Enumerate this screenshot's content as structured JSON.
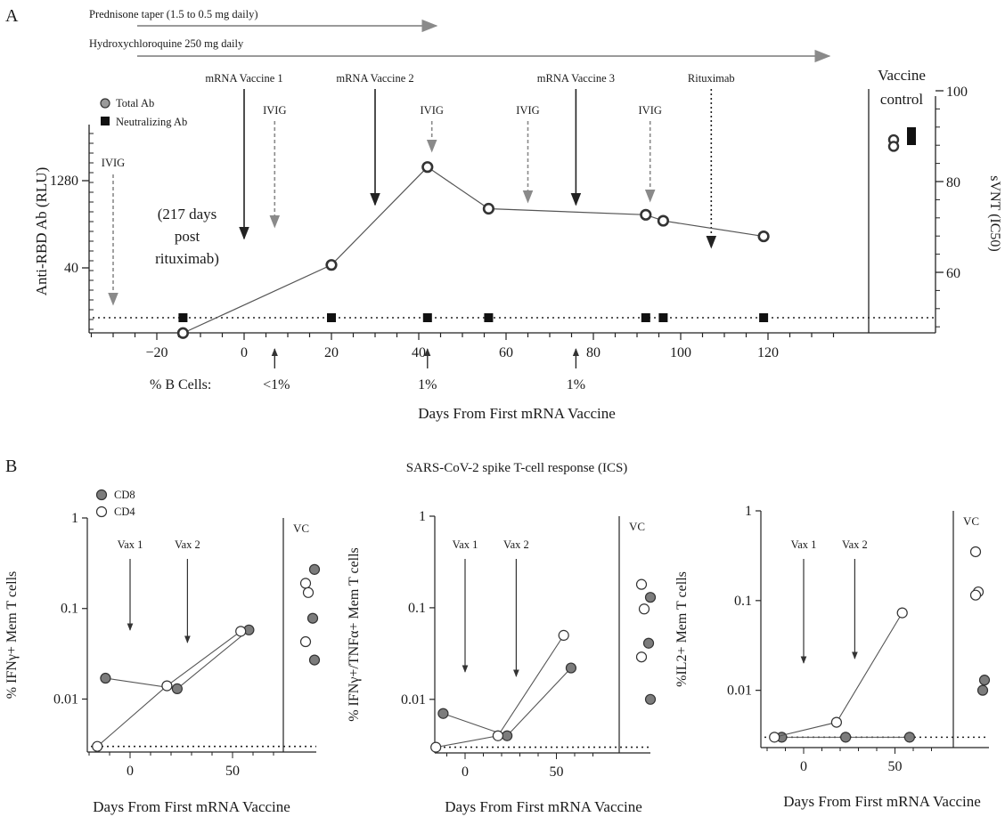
{
  "panel_a": {
    "letter": "A",
    "treatments": [
      {
        "label": "Prednisone taper (1.5 to 0.5 mg daily)",
        "from_day": -30,
        "to_day": 44
      },
      {
        "label": "Hydroxychloroquine 250 mg daily",
        "from_day": -30,
        "to_day": 134
      }
    ],
    "events": [
      {
        "label": "IVIG",
        "day": -30,
        "style": "dashed"
      },
      {
        "label": "mRNA Vaccine 1",
        "day": 0,
        "style": "solid"
      },
      {
        "label": "IVIG",
        "day": 7,
        "style": "dashed"
      },
      {
        "label": "mRNA Vaccine 2",
        "day": 30,
        "style": "solid"
      },
      {
        "label": "IVIG",
        "day": 43,
        "style": "dashed"
      },
      {
        "label": "IVIG",
        "day": 65,
        "style": "dashed"
      },
      {
        "label": "mRNA Vaccine 3",
        "day": 76,
        "style": "solid"
      },
      {
        "label": "IVIG",
        "day": 93,
        "style": "dashed"
      },
      {
        "label": "Rituximab",
        "day": 107,
        "style": "dotted"
      }
    ],
    "note": [
      "(217 days",
      "post",
      "rituximab)"
    ],
    "legend": [
      {
        "label": "Total Ab",
        "marker": "circle-gray"
      },
      {
        "label": "Neutralizing Ab",
        "marker": "square-black"
      }
    ],
    "control_label": [
      "Vaccine",
      "control"
    ],
    "bcells_label": "% B Cells:",
    "bcells": [
      {
        "day": 7,
        "value": "<1%"
      },
      {
        "day": 42,
        "value": "1%"
      },
      {
        "day": 76,
        "value": "1%"
      }
    ]
  },
  "panel_b": {
    "letter": "B",
    "title": "SARS-CoV-2 spike T-cell response (ICS)",
    "legend": [
      {
        "label": "CD8",
        "marker": "gray-filled"
      },
      {
        "label": "CD4",
        "marker": "open"
      }
    ],
    "vc_label": "VC",
    "vax_labels": [
      {
        "label": "Vax 1",
        "day": 0
      },
      {
        "label": "Vax 2",
        "day": 28
      }
    ]
  },
  "chart_data": [
    {
      "type": "line",
      "id": "anti-rbd",
      "xlabel": "Days From First mRNA Vaccine",
      "ylabel": "Anti-RBD Ab (RLU)",
      "y2label": "sVNT (IC50)",
      "xlim": [
        -35,
        135
      ],
      "xticks": [
        -20,
        0,
        20,
        40,
        60,
        80,
        100,
        120
      ],
      "yticks": [
        40,
        1280
      ],
      "y2lim": [
        46,
        100
      ],
      "y2ticks": [
        60,
        80,
        100
      ],
      "series": [
        {
          "name": "Total Ab",
          "axis": "left",
          "x": [
            -14,
            20,
            42,
            56,
            92,
            96,
            119
          ],
          "y": [
            3,
            45,
            2200,
            420,
            330,
            260,
            140
          ]
        },
        {
          "name": "Neutralizing Ab",
          "axis": "right",
          "x": [
            -14,
            20,
            42,
            56,
            92,
            96,
            119
          ],
          "y": [
            50,
            50,
            50,
            50,
            50,
            50,
            50
          ]
        }
      ],
      "vaccine_control": {
        "total_ab": [
          6500,
          5000
        ],
        "neutralizing_ab": 90
      },
      "detection_limit": 50
    },
    {
      "type": "line",
      "id": "ifng",
      "xlabel": "Days From First mRNA Vaccine",
      "ylabel": "% IFNγ+ Mem T cells",
      "scale": "log",
      "ylim": [
        0.0026,
        1
      ],
      "yticks": [
        0.01,
        0.1,
        1
      ],
      "xticks": [
        0,
        50
      ],
      "series": [
        {
          "name": "CD8",
          "x": [
            -12,
            23,
            58
          ],
          "y": [
            0.017,
            0.013,
            0.058
          ]
        },
        {
          "name": "CD4",
          "x": [
            -16,
            18,
            54
          ],
          "y": [
            0.003,
            0.014,
            0.056
          ]
        }
      ],
      "vc": {
        "CD8": [
          0.27,
          0.078,
          0.027
        ],
        "CD4": [
          0.19,
          0.15,
          0.043
        ]
      },
      "detection_limit": 0.003
    },
    {
      "type": "line",
      "id": "ifng-tnfa",
      "xlabel": "Days From First mRNA Vaccine",
      "ylabel": "% IFNγ+/TNFα+ Mem T cells",
      "scale": "log",
      "ylim": [
        0.0026,
        1
      ],
      "yticks": [
        0.01,
        0.1,
        1
      ],
      "xticks": [
        0,
        50
      ],
      "series": [
        {
          "name": "CD8",
          "x": [
            -12,
            23,
            58
          ],
          "y": [
            0.007,
            0.004,
            0.022
          ]
        },
        {
          "name": "CD4",
          "x": [
            -16,
            18,
            54
          ],
          "y": [
            0.003,
            0.004,
            0.05
          ]
        }
      ],
      "vc": {
        "CD8": [
          0.13,
          0.041,
          0.01
        ],
        "CD4": [
          0.18,
          0.097,
          0.029
        ]
      },
      "detection_limit": 0.003
    },
    {
      "type": "line",
      "id": "il2",
      "xlabel": "Days From First mRNA Vaccine",
      "ylabel": "%IL2+ Mem T cells",
      "scale": "log",
      "ylim": [
        0.0023,
        1
      ],
      "yticks": [
        0.01,
        0.1,
        1
      ],
      "xticks": [
        0,
        50
      ],
      "series": [
        {
          "name": "CD8",
          "x": [
            -12,
            23,
            58
          ],
          "y": [
            0.003,
            0.003,
            0.003
          ]
        },
        {
          "name": "CD4",
          "x": [
            -16,
            18,
            54
          ],
          "y": [
            0.003,
            0.0044,
            0.073
          ]
        }
      ],
      "vc": {
        "CD8": [
          0.013,
          0.01
        ],
        "CD4": [
          0.35,
          0.125,
          0.115
        ]
      },
      "detection_limit": 0.003
    }
  ]
}
